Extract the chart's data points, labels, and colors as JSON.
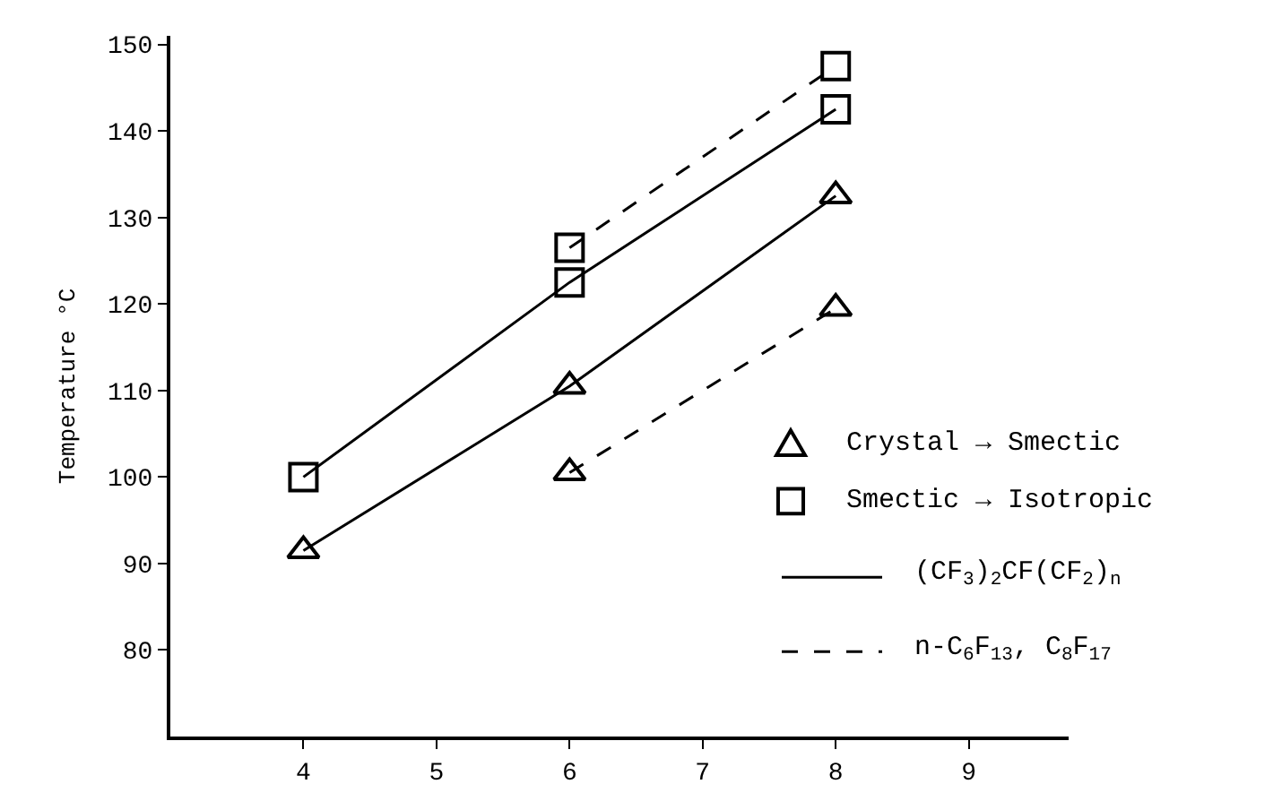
{
  "chart_data": {
    "type": "line",
    "ylabel": "Temperature °C",
    "xlim": [
      3,
      9.75
    ],
    "xticks": [
      4,
      5,
      6,
      7,
      8,
      9
    ],
    "ylim": [
      70,
      151
    ],
    "yticks": [
      80,
      90,
      100,
      110,
      120,
      130,
      140,
      150
    ],
    "annotations": [
      "Crystal → Smectic",
      "Smectic → Isotropic",
      "(CF$_{3}$)$_{2}$CF(CF$_{2}$)$_{n}$",
      "n-C$_{6}$F$_{13}$, C$_{8}$F$_{17}$"
    ],
    "series": [
      {
        "color": "#000000",
        "x": [
          4,
          6,
          8
        ],
        "values": [
          91.5,
          110.5,
          132.5
        ],
        "marker": "triangle",
        "line_style": "solid"
      },
      {
        "color": "#000000",
        "x": [
          4,
          6,
          8
        ],
        "values": [
          100,
          122.5,
          142.5
        ],
        "marker": "square",
        "line_style": "solid"
      },
      {
        "color": "#000000",
        "x": [
          6,
          8
        ],
        "values": [
          100.5,
          119.5
        ],
        "marker": "triangle",
        "line_style": "dashed"
      },
      {
        "color": "#000000",
        "x": [
          6,
          8
        ],
        "values": [
          126.5,
          147.5
        ],
        "marker": "square",
        "line_style": "dashed"
      }
    ]
  }
}
